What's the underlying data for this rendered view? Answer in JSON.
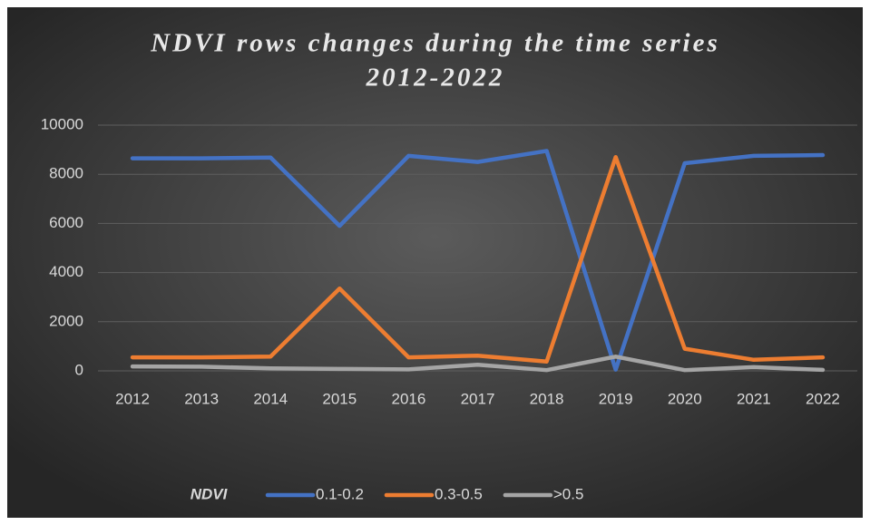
{
  "chart_data": {
    "type": "line",
    "title": [
      "NDVI rows changes during the time series",
      "2012-2022"
    ],
    "categories": [
      "2012",
      "2013",
      "2014",
      "2015",
      "2016",
      "2017",
      "2018",
      "2019",
      "2020",
      "2021",
      "2022"
    ],
    "series": [
      {
        "name": "0.1-0.2",
        "color": "#4472c4",
        "values": [
          8650,
          8650,
          8680,
          5900,
          8750,
          8500,
          8950,
          50,
          8450,
          8750,
          8780
        ]
      },
      {
        "name": "0.3-0.5",
        "color": "#ed7d31",
        "values": [
          550,
          550,
          580,
          3350,
          550,
          620,
          380,
          8700,
          900,
          450,
          550
        ]
      },
      {
        "name": ">0.5",
        "color": "#a5a5a5",
        "values": [
          180,
          170,
          100,
          80,
          60,
          250,
          30,
          580,
          30,
          150,
          40
        ]
      }
    ],
    "legend_title": "NDVI",
    "legend": "bottom",
    "ylim": [
      0,
      10000
    ],
    "yticks": [
      0,
      2000,
      4000,
      6000,
      8000,
      10000
    ],
    "grid": true
  }
}
